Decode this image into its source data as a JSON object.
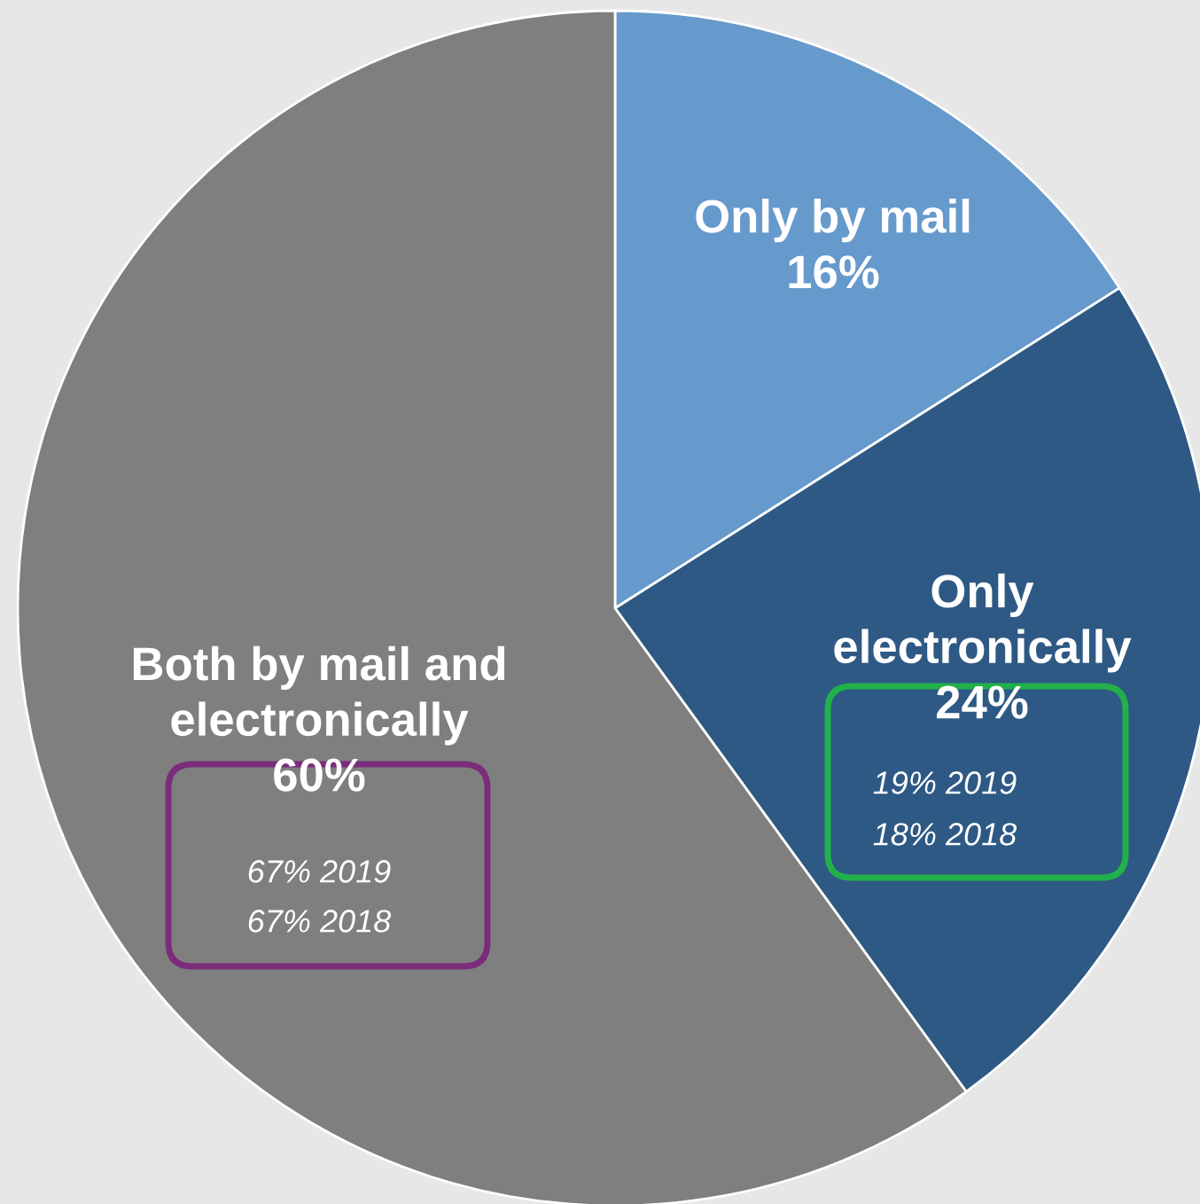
{
  "chart_data": {
    "type": "pie",
    "categories": [
      "Only by mail",
      "Only electronically",
      "Both by mail and electronically"
    ],
    "values": [
      16,
      24,
      60
    ],
    "colors": [
      "#6699cc",
      "#2e5984",
      "#7f7f7f"
    ],
    "value_labels": [
      "16%",
      "24%",
      "60%"
    ],
    "annotations": [
      "19% 2019",
      "18% 2018",
      "67% 2019",
      "67% 2018"
    ]
  }
}
